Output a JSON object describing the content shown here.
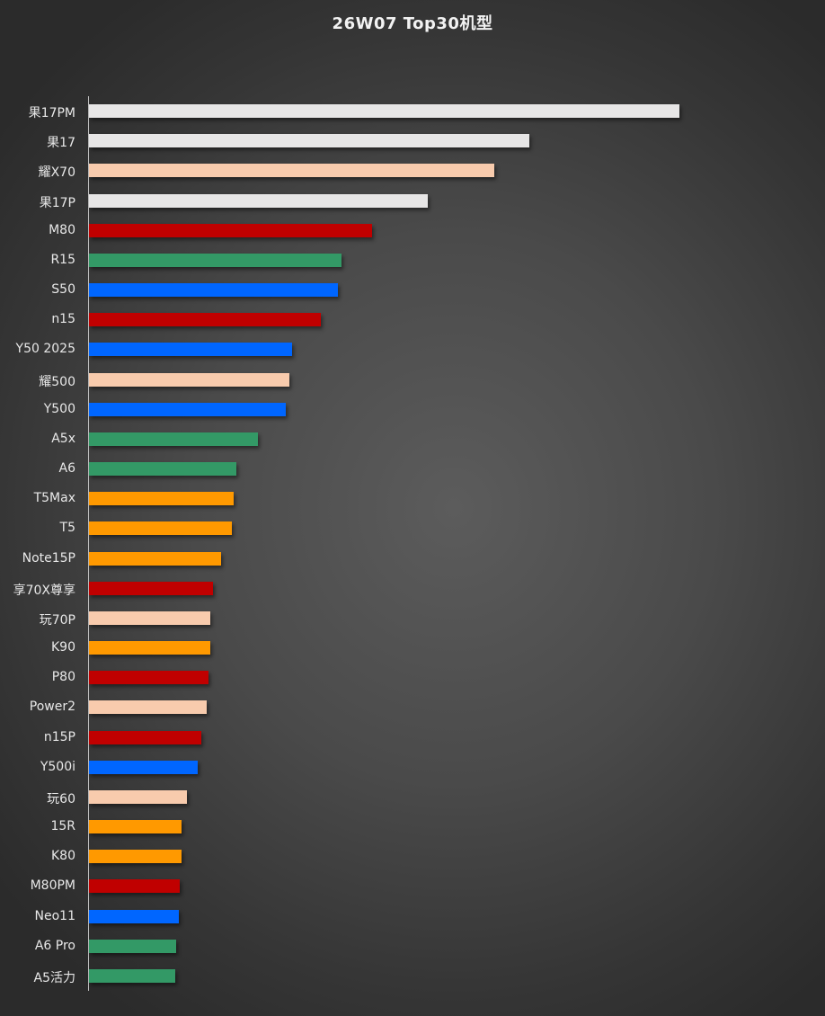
{
  "chart_data": {
    "type": "bar",
    "orientation": "horizontal",
    "title": "26W07 Top30机型",
    "xlabel": "",
    "ylabel": "",
    "grid": false,
    "legend": null,
    "value_note": "relative bar lengths (no axis/values shown)",
    "categories": [
      "果17PM",
      "果17",
      "耀X70",
      "果17P",
      "M80",
      "R15",
      "S50",
      "n15",
      "Y50 2025",
      "耀500",
      "Y500",
      "A5x",
      "A6",
      "T5Max",
      "T5",
      "Note15P",
      "享70X尊享",
      "玩70P",
      "K90",
      "P80",
      "Power2",
      "n15P",
      "Y500i",
      "玩60",
      "15R",
      "K80",
      "M80PM",
      "Neo11",
      "A6 Pro",
      "A5活力"
    ],
    "values": [
      657,
      490,
      451,
      377,
      315,
      281,
      277,
      258,
      226,
      223,
      219,
      188,
      164,
      161,
      159,
      147,
      138,
      135,
      135,
      133,
      131,
      125,
      121,
      109,
      103,
      103,
      101,
      100,
      97,
      96
    ],
    "colors": [
      "#E7E6E6",
      "#E7E6E6",
      "#F8CBAD",
      "#E7E6E6",
      "#C00000",
      "#339966",
      "#0066FF",
      "#C00000",
      "#0066FF",
      "#F8CBAD",
      "#0066FF",
      "#339966",
      "#339966",
      "#FF9900",
      "#FF9900",
      "#FF9900",
      "#C00000",
      "#F8CBAD",
      "#FF9900",
      "#C00000",
      "#F8CBAD",
      "#C00000",
      "#0066FF",
      "#F8CBAD",
      "#FF9900",
      "#FF9900",
      "#C00000",
      "#0066FF",
      "#339966",
      "#339966"
    ]
  },
  "palette": {
    "white": "#E7E6E6",
    "peach": "#F8CBAD",
    "red": "#C00000",
    "green": "#339966",
    "blue": "#0066FF",
    "orange": "#FF9900"
  }
}
